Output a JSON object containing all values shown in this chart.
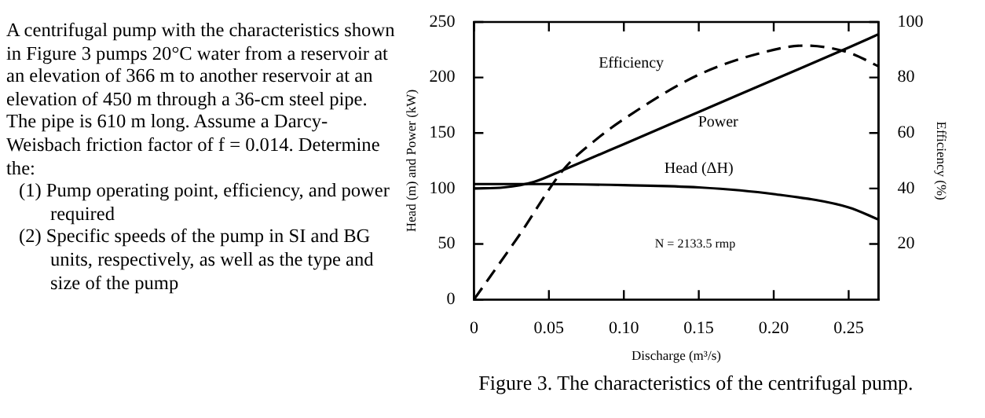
{
  "chart_data": {
    "type": "line",
    "xlabel": "Discharge (m³/s)",
    "ylabel": "Head (m) and Power (kW)",
    "y2label": "Efficiency (%)",
    "xlim": [
      0,
      0.27
    ],
    "xticks": [
      0,
      0.05,
      {
        "value": 0.1,
        "label": "0.10"
      },
      0.15,
      {
        "value": 0.2,
        "label": "0.20"
      },
      0.25
    ],
    "ylim": [
      0,
      250
    ],
    "yticks": [
      0,
      50,
      100,
      150,
      200,
      250
    ],
    "y2lim": [
      0,
      100
    ],
    "y2ticks": [
      20,
      40,
      60,
      80,
      100
    ],
    "marker": "none",
    "series": [
      {
        "name": "Head (ΔH)",
        "color": "#000000",
        "x": [
          0,
          0.05,
          0.1,
          0.15,
          0.2,
          0.25,
          0.27
        ],
        "values": [
          104,
          104,
          103,
          101,
          95,
          83,
          72
        ]
      },
      {
        "name": "Power",
        "color": "#000000",
        "x": [
          0,
          0.02,
          0.04,
          0.06,
          0.1,
          0.15,
          0.2,
          0.25,
          0.27
        ],
        "values": [
          100,
          101,
          106,
          117,
          140,
          169,
          198,
          227,
          239
        ]
      },
      {
        "name": "Efficiency",
        "color": "#000000",
        "axis": "y2",
        "line_style": "dashed",
        "x": [
          0,
          0.03,
          0.06,
          0.08,
          0.1,
          0.15,
          0.2,
          0.22,
          0.25,
          0.27
        ],
        "values": [
          0,
          23,
          47,
          57,
          65,
          81,
          90,
          91.5,
          89,
          84
        ]
      }
    ],
    "annotations": [
      "A centrifugal pump with the characteristics shown in Figure 3 pumps 20°C water from a reservoir at an elevation of 366 m to another reservoir at an elevation of 450 m through a 36-cm steel pipe. The pipe is 610 m long. Assume a Darcy-Weisbach friction factor of f = 0.014. Determine the:",
      "(1) Pump operating point, efficiency, and power required",
      "(2) Specific speeds of the pump in SI and BG units, respectively, as well as the type and size of the pump",
      "Figure 3. The characteristics of the centrifugal pump.",
      "N = 2133.5 rmp"
    ]
  }
}
